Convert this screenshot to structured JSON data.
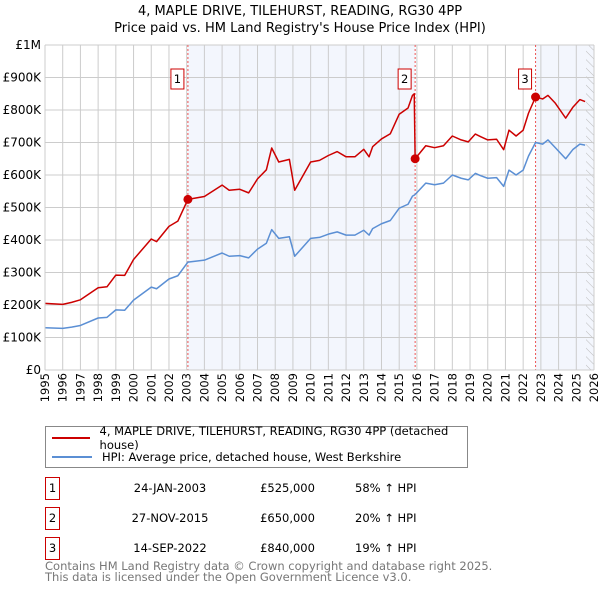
{
  "chart_data": {
    "type": "line",
    "title": "4, MAPLE DRIVE, TILEHURST, READING, RG30 4PP",
    "subtitle": "Price paid vs. HM Land Registry's House Price Index (HPI)",
    "xlim": [
      1995,
      2026
    ],
    "ylim": [
      0,
      1000000
    ],
    "y_ticks": [
      {
        "value": 0,
        "label": "£0"
      },
      {
        "value": 100000,
        "label": "£100K"
      },
      {
        "value": 200000,
        "label": "£200K"
      },
      {
        "value": 300000,
        "label": "£300K"
      },
      {
        "value": 400000,
        "label": "£400K"
      },
      {
        "value": 500000,
        "label": "£500K"
      },
      {
        "value": 600000,
        "label": "£600K"
      },
      {
        "value": 700000,
        "label": "£700K"
      },
      {
        "value": 800000,
        "label": "£800K"
      },
      {
        "value": 900000,
        "label": "£900K"
      },
      {
        "value": 1000000,
        "label": "£1M"
      }
    ],
    "x_ticks": [
      "1995",
      "1996",
      "1997",
      "1998",
      "1999",
      "2000",
      "2001",
      "2002",
      "2003",
      "2004",
      "2005",
      "2006",
      "2007",
      "2008",
      "2009",
      "2010",
      "2011",
      "2012",
      "2013",
      "2014",
      "2015",
      "2016",
      "2017",
      "2018",
      "2019",
      "2020",
      "2021",
      "2022",
      "2023",
      "2024",
      "2025",
      "2026"
    ],
    "grid": true,
    "x": [
      1995.0,
      1996.0,
      1996.5,
      1997.0,
      1998.0,
      1998.5,
      1999.0,
      1999.5,
      2000.0,
      2001.0,
      2001.3,
      2002.0,
      2002.5,
      2003.07,
      2004.0,
      2005.0,
      2005.4,
      2006.0,
      2006.5,
      2007.0,
      2007.5,
      2007.8,
      2008.2,
      2008.8,
      2009.1,
      2010.0,
      2010.5,
      2011.0,
      2011.5,
      2012.0,
      2012.5,
      2013.0,
      2013.3,
      2013.5,
      2014.0,
      2014.5,
      2015.0,
      2015.5,
      2015.75,
      2015.85,
      2015.9,
      2016.5,
      2017.0,
      2017.5,
      2018.0,
      2018.5,
      2018.9,
      2019.3,
      2019.6,
      2020.0,
      2020.5,
      2020.9,
      2021.2,
      2021.6,
      2022.0,
      2022.3,
      2022.7,
      2023.1,
      2023.4,
      2023.8,
      2024.4,
      2024.8,
      2025.2,
      2025.5
    ],
    "series": [
      {
        "name": "4, MAPLE DRIVE, TILEHURST, READING, RG30 4PP (detached house)",
        "color": "#cc0000",
        "values": [
          205,
          202,
          208,
          216,
          253,
          256,
          292,
          291,
          340,
          403,
          395,
          442,
          458,
          525,
          534,
          569,
          553,
          556,
          545,
          588,
          616,
          683,
          640,
          648,
          553,
          640,
          645,
          660,
          672,
          656,
          656,
          679,
          656,
          687,
          711,
          727,
          787,
          806,
          845,
          850,
          650,
          690,
          684,
          690,
          720,
          708,
          702,
          726,
          718,
          708,
          710,
          678,
          738,
          720,
          738,
          790,
          840,
          834,
          845,
          822,
          775,
          808,
          832,
          826
        ]
      },
      {
        "name": "HPI: Average price, detached house, West Berkshire",
        "color": "#5b8fd4",
        "values": [
          130,
          128,
          132,
          137,
          160,
          162,
          185,
          184,
          215,
          255,
          250,
          280,
          290,
          332,
          338,
          360,
          350,
          352,
          345,
          372,
          390,
          432,
          405,
          410,
          350,
          405,
          408,
          418,
          425,
          415,
          415,
          430,
          415,
          435,
          450,
          460,
          498,
          510,
          535,
          538,
          540,
          575,
          570,
          575,
          600,
          590,
          585,
          605,
          598,
          590,
          592,
          565,
          615,
          600,
          615,
          658,
          700,
          695,
          708,
          685,
          650,
          678,
          695,
          692
        ]
      }
    ],
    "value_unit": "thousands GBP",
    "sales": [
      {
        "n": "1",
        "x": 2003.07,
        "value": 525,
        "date": "24-JAN-2003",
        "price": "£525,000",
        "hpi": "58% ↑ HPI"
      },
      {
        "n": "2",
        "x": 2015.9,
        "value": 650,
        "date": "27-NOV-2015",
        "price": "£650,000",
        "hpi": "20% ↑ HPI"
      },
      {
        "n": "3",
        "x": 2022.7,
        "value": 840,
        "date": "14-SEP-2022",
        "price": "£840,000",
        "hpi": "19% ↑ HPI"
      }
    ],
    "legend_placement": "below"
  },
  "footer": {
    "line1": "Contains HM Land Registry data © Crown copyright and database right 2025.",
    "line2": "This data is licensed under the Open Government Licence v3.0."
  }
}
